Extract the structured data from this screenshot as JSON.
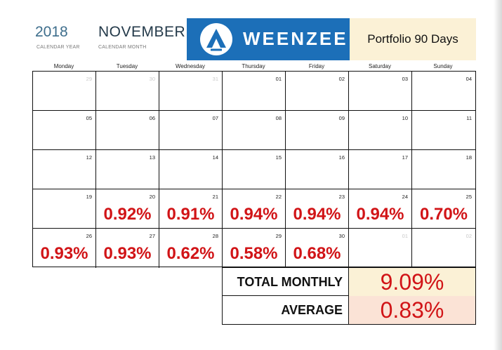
{
  "header": {
    "year": "2018",
    "year_label": "CALENDAR YEAR",
    "month": "NOVEMBER",
    "month_label": "CALENDAR MONTH",
    "logo_text": "WEENZEE",
    "portfolio_label": "Portfolio 90 Days"
  },
  "days": [
    "Monday",
    "Tuesday",
    "Wednesday",
    "Thursday",
    "Friday",
    "Saturday",
    "Sunday"
  ],
  "cells": [
    {
      "date": "29",
      "dim": true,
      "pct": ""
    },
    {
      "date": "30",
      "dim": true,
      "pct": ""
    },
    {
      "date": "31",
      "dim": true,
      "pct": ""
    },
    {
      "date": "01",
      "dim": false,
      "pct": ""
    },
    {
      "date": "02",
      "dim": false,
      "pct": ""
    },
    {
      "date": "03",
      "dim": false,
      "pct": ""
    },
    {
      "date": "04",
      "dim": false,
      "pct": ""
    },
    {
      "date": "05",
      "dim": false,
      "pct": ""
    },
    {
      "date": "06",
      "dim": false,
      "pct": ""
    },
    {
      "date": "07",
      "dim": false,
      "pct": ""
    },
    {
      "date": "08",
      "dim": false,
      "pct": ""
    },
    {
      "date": "09",
      "dim": false,
      "pct": ""
    },
    {
      "date": "10",
      "dim": false,
      "pct": ""
    },
    {
      "date": "11",
      "dim": false,
      "pct": ""
    },
    {
      "date": "12",
      "dim": false,
      "pct": ""
    },
    {
      "date": "13",
      "dim": false,
      "pct": ""
    },
    {
      "date": "14",
      "dim": false,
      "pct": ""
    },
    {
      "date": "15",
      "dim": false,
      "pct": ""
    },
    {
      "date": "16",
      "dim": false,
      "pct": ""
    },
    {
      "date": "17",
      "dim": false,
      "pct": ""
    },
    {
      "date": "18",
      "dim": false,
      "pct": ""
    },
    {
      "date": "19",
      "dim": false,
      "pct": ""
    },
    {
      "date": "20",
      "dim": false,
      "pct": "0.92%"
    },
    {
      "date": "21",
      "dim": false,
      "pct": "0.91%"
    },
    {
      "date": "22",
      "dim": false,
      "pct": "0.94%"
    },
    {
      "date": "23",
      "dim": false,
      "pct": "0.94%"
    },
    {
      "date": "24",
      "dim": false,
      "pct": "0.94%"
    },
    {
      "date": "25",
      "dim": false,
      "pct": "0.70%"
    },
    {
      "date": "26",
      "dim": false,
      "pct": "0.93%"
    },
    {
      "date": "27",
      "dim": false,
      "pct": "0.93%"
    },
    {
      "date": "28",
      "dim": false,
      "pct": "0.62%"
    },
    {
      "date": "29",
      "dim": false,
      "pct": "0.58%"
    },
    {
      "date": "30",
      "dim": false,
      "pct": "0.68%"
    },
    {
      "date": "01",
      "dim": true,
      "pct": ""
    },
    {
      "date": "02",
      "dim": true,
      "pct": ""
    }
  ],
  "summary": {
    "total_label": "TOTAL MONTHLY",
    "total_value": "9.09%",
    "average_label": "AVERAGE",
    "average_value": "0.83%"
  },
  "colors": {
    "logo_blue": "#1c6fb8",
    "accent_red": "#d11417",
    "year_blue": "#3e6e8c",
    "portfolio_bg": "#fbf1d6",
    "average_bg": "#fbe3d6"
  }
}
